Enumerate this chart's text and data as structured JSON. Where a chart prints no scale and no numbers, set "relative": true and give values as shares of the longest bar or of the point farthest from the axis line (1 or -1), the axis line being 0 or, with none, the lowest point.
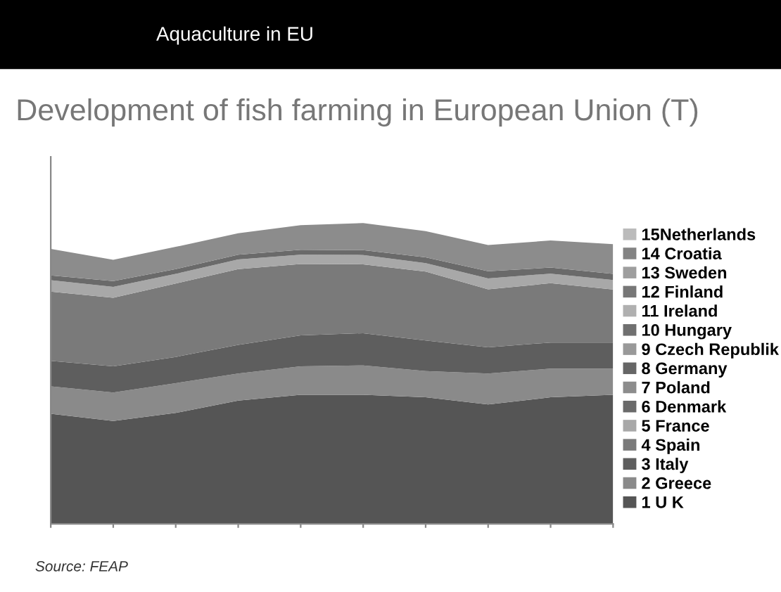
{
  "chart_data": {
    "type": "area",
    "stacked": true,
    "relative": true,
    "subtitle": "Aquaculture in EU",
    "title": "Development of fish farming in European Union (T)",
    "annotations": [
      "Source: FEAP"
    ],
    "categories": [
      null,
      null,
      null,
      null,
      null,
      null,
      null,
      null,
      null,
      null
    ],
    "legend": "right",
    "series": [
      {
        "name": "1 U K",
        "color": "#555555",
        "values": [
          0.366,
          0.342,
          0.369,
          0.41,
          0.429,
          0.429,
          0.421,
          0.397,
          0.421,
          0.429
        ]
      },
      {
        "name": "2 Greece",
        "color": "#8a8a8a",
        "values": [
          0.091,
          0.095,
          0.099,
          0.09,
          0.095,
          0.098,
          0.087,
          0.103,
          0.095,
          0.087
        ]
      },
      {
        "name": "3 Italy",
        "color": "#5e5e5e",
        "values": [
          0.085,
          0.087,
          0.087,
          0.095,
          0.103,
          0.107,
          0.102,
          0.087,
          0.087,
          0.087
        ]
      },
      {
        "name": "4 Spain",
        "color": "#7a7a7a",
        "values": [
          0.23,
          0.228,
          0.244,
          0.252,
          0.237,
          0.229,
          0.229,
          0.193,
          0.197,
          0.176
        ]
      },
      {
        "name": "5 France",
        "color": "#a8a8a8",
        "values": [
          0.038,
          0.036,
          0.032,
          0.032,
          0.031,
          0.031,
          0.028,
          0.036,
          0.032,
          0.032
        ]
      },
      {
        "name": "6 Denmark",
        "color": "#6a6a6a",
        "values": [
          0.016,
          0.019,
          0.016,
          0.016,
          0.016,
          0.016,
          0.019,
          0.024,
          0.02,
          0.02
        ]
      },
      {
        "name": "7 Poland",
        "color": "#8c8c8c",
        "values": [
          0.088,
          0.071,
          0.074,
          0.071,
          0.082,
          0.09,
          0.087,
          0.087,
          0.09,
          0.099
        ]
      },
      {
        "name": "8 Germany",
        "color": "#666666",
        "values": [
          null,
          null,
          null,
          null,
          null,
          null,
          null,
          null,
          null,
          null
        ]
      },
      {
        "name": "9 Czech Republik",
        "color": "#999999",
        "values": [
          null,
          null,
          null,
          null,
          null,
          null,
          null,
          null,
          null,
          null
        ]
      },
      {
        "name": "10 Hungary",
        "color": "#707070",
        "values": [
          null,
          null,
          null,
          null,
          null,
          null,
          null,
          null,
          null,
          null
        ]
      },
      {
        "name": "11 Ireland",
        "color": "#b0b0b0",
        "values": [
          null,
          null,
          null,
          null,
          null,
          null,
          null,
          null,
          null,
          null
        ]
      },
      {
        "name": "12 Finland",
        "color": "#777777",
        "values": [
          null,
          null,
          null,
          null,
          null,
          null,
          null,
          null,
          null,
          null
        ]
      },
      {
        "name": "13 Sweden",
        "color": "#9e9e9e",
        "values": [
          null,
          null,
          null,
          null,
          null,
          null,
          null,
          null,
          null,
          null
        ]
      },
      {
        "name": "14 Croatia",
        "color": "#838383",
        "values": [
          null,
          null,
          null,
          null,
          null,
          null,
          null,
          null,
          null,
          null
        ]
      },
      {
        "name": "15Netherlands",
        "color": "#bbbbbb",
        "values": [
          null,
          null,
          null,
          null,
          null,
          null,
          null,
          null,
          null,
          null
        ]
      }
    ]
  }
}
